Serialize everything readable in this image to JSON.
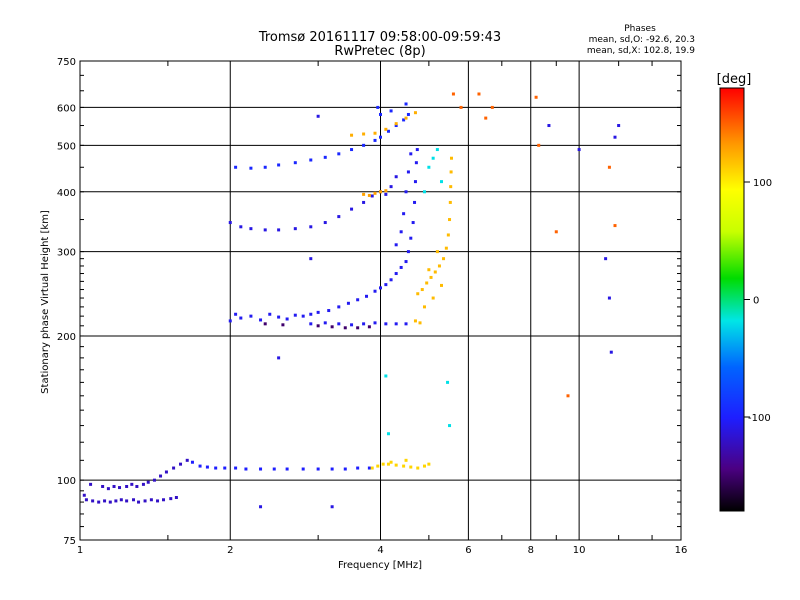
{
  "chart_data": {
    "type": "scatter",
    "title": "Tromsø 20161117 09:58:00-09:59:43",
    "subtitle": "RwPretec (8p)",
    "phase_stats": {
      "heading": "Phases",
      "line_o": "mean, sd,O: -92.6, 20.3",
      "line_x": "mean, sd,X: 102.8, 19.9"
    },
    "xlabel": "Frequency [MHz]",
    "ylabel": "Stationary phase Virtual Height [km]",
    "x_scale": "log",
    "y_scale": "log",
    "xlim": [
      1,
      16
    ],
    "ylim": [
      75,
      750
    ],
    "x_ticks": [
      1,
      2,
      4,
      6,
      8,
      10,
      16
    ],
    "y_ticks": [
      75,
      100,
      200,
      300,
      400,
      500,
      600,
      750
    ],
    "x_gridlines": [
      2,
      4,
      6,
      8,
      10
    ],
    "y_gridlines": [
      100,
      200,
      300,
      400,
      500,
      600
    ],
    "grid": true,
    "colorbar": {
      "label": "[deg]",
      "range": [
        -180,
        180
      ],
      "ticks": [
        100,
        0,
        -100
      ],
      "colormap": "rainbow (black-purple-blue-cyan-green-yellow-orange-red)"
    },
    "series": [
      {
        "phase_deg": -120,
        "points": [
          [
            1.03,
            91
          ],
          [
            1.06,
            90.5
          ],
          [
            1.09,
            90
          ],
          [
            1.12,
            90.5
          ],
          [
            1.15,
            90
          ],
          [
            1.18,
            90.5
          ],
          [
            1.21,
            91
          ],
          [
            1.24,
            90.5
          ],
          [
            1.28,
            91
          ],
          [
            1.31,
            90
          ],
          [
            1.35,
            90.5
          ],
          [
            1.39,
            91
          ],
          [
            1.43,
            90.5
          ],
          [
            1.47,
            91
          ],
          [
            1.52,
            91.5
          ],
          [
            1.56,
            92
          ],
          [
            1.11,
            97
          ],
          [
            1.14,
            96
          ],
          [
            1.17,
            97
          ],
          [
            1.2,
            96.5
          ],
          [
            1.24,
            97
          ],
          [
            1.27,
            98
          ],
          [
            1.3,
            97
          ],
          [
            1.34,
            98
          ],
          [
            1.37,
            99
          ],
          [
            1.41,
            100
          ],
          [
            1.45,
            102
          ],
          [
            1.49,
            104
          ],
          [
            1.54,
            106
          ],
          [
            1.59,
            108
          ],
          [
            1.64,
            110
          ],
          [
            1.02,
            93
          ],
          [
            1.05,
            98
          ]
        ]
      },
      {
        "phase_deg": -100,
        "points": [
          [
            1.68,
            109
          ],
          [
            1.74,
            107
          ],
          [
            1.8,
            106.5
          ],
          [
            1.87,
            106
          ],
          [
            1.95,
            106
          ],
          [
            2.05,
            106
          ],
          [
            2.15,
            105.5
          ],
          [
            2.3,
            105.5
          ],
          [
            2.45,
            105.5
          ],
          [
            2.6,
            105.5
          ],
          [
            2.8,
            105.5
          ],
          [
            3.0,
            105.5
          ],
          [
            3.2,
            105.5
          ],
          [
            3.4,
            105.5
          ],
          [
            3.6,
            106
          ],
          [
            3.8,
            106
          ]
        ]
      },
      {
        "phase_deg": 110,
        "points": [
          [
            3.85,
            106
          ],
          [
            3.95,
            107
          ],
          [
            4.05,
            108
          ],
          [
            4.15,
            108
          ],
          [
            4.3,
            107.5
          ],
          [
            4.45,
            107
          ],
          [
            4.6,
            106.5
          ],
          [
            4.75,
            106
          ],
          [
            4.9,
            107
          ],
          [
            5.0,
            108
          ],
          [
            4.2,
            109
          ],
          [
            4.5,
            110
          ]
        ]
      },
      {
        "phase_deg": -105,
        "points": [
          [
            2.0,
            215
          ],
          [
            2.05,
            222
          ],
          [
            2.1,
            218
          ],
          [
            2.2,
            220
          ],
          [
            2.3,
            216
          ],
          [
            2.4,
            222
          ],
          [
            2.5,
            219
          ],
          [
            2.6,
            217
          ],
          [
            2.7,
            221
          ],
          [
            2.8,
            220
          ],
          [
            2.9,
            222
          ],
          [
            3.0,
            224
          ],
          [
            3.15,
            226
          ],
          [
            3.3,
            230
          ],
          [
            3.45,
            234
          ],
          [
            3.6,
            238
          ],
          [
            3.75,
            242
          ],
          [
            3.9,
            248
          ],
          [
            4.0,
            252
          ],
          [
            4.1,
            256
          ],
          [
            4.2,
            262
          ],
          [
            4.3,
            270
          ],
          [
            4.4,
            278
          ],
          [
            4.5,
            286
          ],
          [
            4.55,
            300
          ],
          [
            4.6,
            320
          ],
          [
            4.65,
            345
          ],
          [
            4.68,
            380
          ],
          [
            4.7,
            420
          ],
          [
            4.72,
            460
          ],
          [
            4.74,
            490
          ],
          [
            4.3,
            310
          ],
          [
            4.4,
            330
          ],
          [
            4.45,
            360
          ],
          [
            4.5,
            400
          ],
          [
            4.55,
            440
          ],
          [
            4.6,
            480
          ],
          [
            2.9,
            212
          ],
          [
            3.1,
            213
          ],
          [
            3.3,
            212
          ],
          [
            3.5,
            211
          ],
          [
            3.7,
            212
          ],
          [
            3.9,
            213
          ],
          [
            4.1,
            212
          ],
          [
            4.3,
            212
          ],
          [
            4.5,
            212
          ]
        ]
      },
      {
        "phase_deg": -150,
        "points": [
          [
            3.0,
            210
          ],
          [
            3.2,
            209
          ],
          [
            3.4,
            208
          ],
          [
            3.6,
            208
          ],
          [
            3.8,
            209
          ],
          [
            2.35,
            212
          ],
          [
            2.55,
            211
          ]
        ]
      },
      {
        "phase_deg": 120,
        "points": [
          [
            4.75,
            245
          ],
          [
            4.85,
            250
          ],
          [
            4.95,
            258
          ],
          [
            5.05,
            265
          ],
          [
            5.15,
            272
          ],
          [
            5.25,
            280
          ],
          [
            5.35,
            290
          ],
          [
            5.42,
            305
          ],
          [
            5.47,
            325
          ],
          [
            5.5,
            350
          ],
          [
            5.52,
            380
          ],
          [
            5.53,
            410
          ],
          [
            5.54,
            440
          ],
          [
            5.55,
            470
          ],
          [
            5.0,
            275
          ],
          [
            5.2,
            300
          ],
          [
            4.9,
            230
          ],
          [
            5.1,
            240
          ],
          [
            5.3,
            255
          ],
          [
            4.7,
            215
          ],
          [
            4.8,
            213
          ]
        ]
      },
      {
        "phase_deg": -110,
        "points": [
          [
            2.0,
            345
          ],
          [
            2.1,
            338
          ],
          [
            2.2,
            335
          ],
          [
            2.35,
            333
          ],
          [
            2.5,
            333
          ],
          [
            2.7,
            335
          ],
          [
            2.9,
            338
          ],
          [
            3.1,
            345
          ],
          [
            3.3,
            355
          ],
          [
            3.5,
            368
          ],
          [
            3.7,
            380
          ],
          [
            3.85,
            392
          ],
          [
            4.0,
            400
          ],
          [
            4.1,
            395
          ],
          [
            4.2,
            410
          ],
          [
            4.3,
            430
          ]
        ]
      },
      {
        "phase_deg": 130,
        "points": [
          [
            3.7,
            395
          ],
          [
            3.8,
            393
          ],
          [
            3.9,
            397
          ],
          [
            4.0,
            400
          ],
          [
            4.1,
            402
          ]
        ]
      },
      {
        "phase_deg": -95,
        "points": [
          [
            2.05,
            450
          ],
          [
            2.2,
            448
          ],
          [
            2.35,
            450
          ],
          [
            2.5,
            455
          ],
          [
            2.7,
            460
          ],
          [
            2.9,
            466
          ],
          [
            3.1,
            472
          ],
          [
            3.3,
            480
          ],
          [
            3.5,
            490
          ],
          [
            3.7,
            500
          ],
          [
            3.9,
            512
          ],
          [
            4.0,
            520
          ],
          [
            4.15,
            535
          ],
          [
            4.3,
            550
          ],
          [
            4.45,
            565
          ],
          [
            4.55,
            580
          ],
          [
            4.0,
            580
          ],
          [
            4.2,
            590
          ],
          [
            3.95,
            600
          ],
          [
            4.5,
            610
          ]
        ]
      },
      {
        "phase_deg": 125,
        "points": [
          [
            3.5,
            525
          ],
          [
            3.7,
            528
          ],
          [
            3.9,
            530
          ],
          [
            4.1,
            540
          ],
          [
            4.3,
            555
          ],
          [
            4.5,
            570
          ],
          [
            4.7,
            585
          ]
        ]
      },
      {
        "phase_deg": -20,
        "points": [
          [
            5.0,
            450
          ],
          [
            5.1,
            470
          ],
          [
            5.2,
            490
          ],
          [
            5.3,
            420
          ],
          [
            4.9,
            400
          ],
          [
            5.45,
            160
          ],
          [
            5.5,
            130
          ],
          [
            4.1,
            165
          ],
          [
            4.15,
            125
          ]
        ]
      },
      {
        "phase_deg": 150,
        "points": [
          [
            6.3,
            640
          ],
          [
            6.5,
            570
          ],
          [
            6.7,
            600
          ],
          [
            8.2,
            630
          ],
          [
            8.3,
            500
          ],
          [
            9.0,
            330
          ],
          [
            9.5,
            150
          ],
          [
            11.5,
            450
          ],
          [
            11.8,
            340
          ],
          [
            5.6,
            640
          ],
          [
            5.8,
            600
          ]
        ]
      },
      {
        "phase_deg": -110,
        "points": [
          [
            8.7,
            550
          ],
          [
            10.0,
            490
          ],
          [
            11.3,
            290
          ],
          [
            11.5,
            240
          ],
          [
            11.6,
            185
          ],
          [
            12.0,
            550
          ],
          [
            11.8,
            520
          ],
          [
            3.0,
            575
          ],
          [
            2.5,
            180
          ],
          [
            2.3,
            88
          ],
          [
            3.2,
            88
          ],
          [
            2.9,
            290
          ]
        ]
      }
    ]
  }
}
